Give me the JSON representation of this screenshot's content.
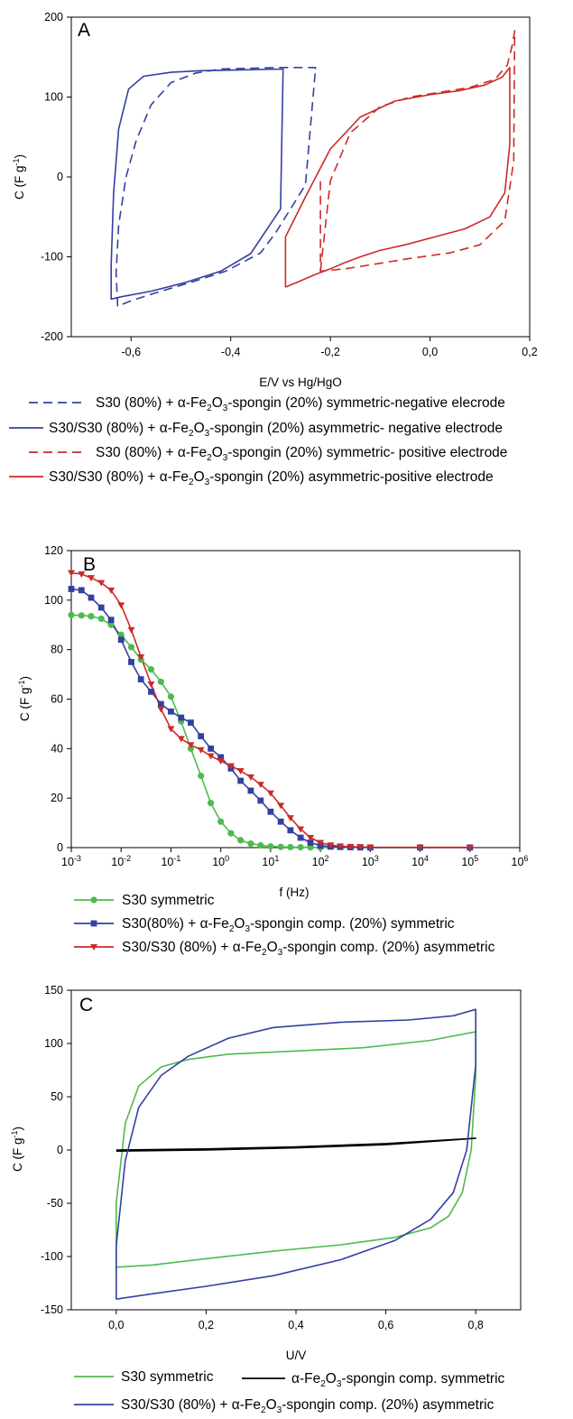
{
  "chart_data": [
    {
      "panel_label": "A",
      "type": "line",
      "xlabel": "E/V vs Hg/HgO",
      "ylabel": "C (F g-1)",
      "xlim": [
        -0.72,
        0.2
      ],
      "ylim": [
        -200,
        200
      ],
      "xticks": [
        "-0,6",
        "-0,4",
        "-0,2",
        "0,0",
        "0,2"
      ],
      "yticks": [
        "-200",
        "-100",
        "0",
        "100",
        "200"
      ],
      "legend_placement": "below",
      "series": [
        {
          "name": "S30 (80%) + α-Fe2O3-spongin (20%) symmetric-negative elecrode",
          "color": "#3340a0",
          "dash": true,
          "x": [
            -0.23,
            -0.23,
            -0.3,
            -0.36,
            -0.42,
            -0.47,
            -0.52,
            -0.56,
            -0.59,
            -0.61,
            -0.625,
            -0.63,
            -0.627,
            -0.62,
            -0.6,
            -0.55,
            -0.48,
            -0.41,
            -0.34,
            -0.31,
            -0.28,
            -0.25,
            -0.23
          ],
          "y": [
            135,
            137,
            137,
            136,
            135,
            130,
            118,
            90,
            45,
            0,
            -60,
            -120,
            -162,
            -160,
            -155,
            -145,
            -132,
            -118,
            -95,
            -70,
            -40,
            -10,
            135
          ]
        },
        {
          "name": "S30/S30 (80%) + α-Fe2O3-spongin (20%) asymmetric- negative electrode",
          "color": "#3340a0",
          "dash": false,
          "x": [
            -0.295,
            -0.295,
            -0.38,
            -0.46,
            -0.52,
            -0.575,
            -0.605,
            -0.625,
            -0.635,
            -0.64,
            -0.64,
            -0.62,
            -0.56,
            -0.49,
            -0.42,
            -0.36,
            -0.3,
            -0.295
          ],
          "y": [
            133,
            135,
            134,
            133,
            131,
            126,
            110,
            60,
            -20,
            -110,
            -153,
            -150,
            -143,
            -132,
            -118,
            -96,
            -40,
            133
          ]
        },
        {
          "name": "S30 (80%) + α-Fe2O3-spongin (20%) symmetric- positive electrode",
          "color": "#cc2a2a",
          "dash": true,
          "x": [
            -0.22,
            -0.2,
            -0.16,
            -0.1,
            -0.04,
            0.02,
            0.08,
            0.13,
            0.155,
            0.165,
            0.17,
            0.168,
            0.15,
            0.1,
            0.04,
            -0.04,
            -0.12,
            -0.17,
            -0.22,
            -0.22
          ],
          "y": [
            -118,
            -5,
            55,
            88,
            100,
            106,
            112,
            122,
            140,
            165,
            183,
            20,
            -55,
            -85,
            -95,
            -102,
            -110,
            -115,
            -118,
            -5
          ]
        },
        {
          "name": "S30/S30 (80%) + α-Fe2O3-spongin (20%) asymmetric-positive electrode",
          "color": "#cc2a2a",
          "dash": false,
          "x": [
            -0.29,
            -0.29,
            -0.25,
            -0.2,
            -0.14,
            -0.07,
            0.0,
            0.06,
            0.11,
            0.145,
            0.16,
            0.16,
            0.15,
            0.12,
            0.07,
            0.01,
            -0.05,
            -0.1,
            -0.14,
            -0.17,
            -0.2,
            -0.23,
            -0.26,
            -0.29
          ],
          "y": [
            -138,
            -75,
            -25,
            35,
            75,
            95,
            103,
            108,
            115,
            125,
            137,
            40,
            -20,
            -50,
            -65,
            -75,
            -85,
            -92,
            -100,
            -107,
            -115,
            -122,
            -130,
            -138
          ]
        }
      ]
    },
    {
      "panel_label": "B",
      "type": "line",
      "xlabel": "f (Hz)",
      "ylabel": "C (F g-1)",
      "xscale": "log",
      "xlim": [
        0.001,
        1000000
      ],
      "ylim": [
        0,
        120
      ],
      "xticks": [
        "10-3",
        "10-2",
        "10-1",
        "100",
        "101",
        "102",
        "103",
        "104",
        "105",
        "106"
      ],
      "yticks": [
        "0",
        "20",
        "40",
        "60",
        "80",
        "100",
        "120"
      ],
      "legend_placement": "below",
      "series": [
        {
          "name": "S30 symmetric",
          "color": "#4dbb4d",
          "marker": "circle",
          "x": [
            0.001,
            0.0016,
            0.0025,
            0.004,
            0.0063,
            0.01,
            0.016,
            0.025,
            0.04,
            0.063,
            0.1,
            0.16,
            0.25,
            0.4,
            0.63,
            1,
            1.6,
            2.5,
            4,
            6.3,
            10,
            16,
            25,
            40,
            63,
            100,
            1000,
            10000,
            100000
          ],
          "y": [
            94,
            93.8,
            93.5,
            92.5,
            90,
            86,
            81,
            76,
            72,
            67,
            61,
            51,
            40,
            29,
            18,
            10.5,
            5.8,
            3,
            1.6,
            0.9,
            0.5,
            0.3,
            0.2,
            0.15,
            0.1,
            0.05,
            0.05,
            0.05,
            0.05
          ]
        },
        {
          "name": "S30(80%) + α-Fe2O3-spongin comp. (20%) symmetric",
          "color": "#3340a0",
          "marker": "square",
          "x": [
            0.001,
            0.0016,
            0.0025,
            0.004,
            0.0063,
            0.01,
            0.016,
            0.025,
            0.04,
            0.063,
            0.1,
            0.16,
            0.25,
            0.4,
            0.63,
            1,
            1.6,
            2.5,
            4,
            6.3,
            10,
            16,
            25,
            40,
            63,
            100,
            160,
            250,
            400,
            630,
            1000,
            10000,
            100000
          ],
          "y": [
            104.5,
            104,
            101,
            97,
            92,
            84,
            75,
            68,
            63,
            58,
            55,
            52.5,
            50.5,
            45,
            40,
            36.5,
            32,
            27,
            23,
            19,
            14.5,
            10.5,
            7,
            4,
            2,
            0.8,
            0.4,
            0.25,
            0.15,
            0.1,
            0.05,
            0.05,
            0.05
          ]
        },
        {
          "name": "S30/S30 (80%) + α-Fe2O3-spongin comp. (20%) asymmetric",
          "color": "#cc2a2a",
          "marker": "triangle-down",
          "x": [
            0.001,
            0.0016,
            0.0025,
            0.004,
            0.0063,
            0.01,
            0.016,
            0.025,
            0.04,
            0.063,
            0.1,
            0.16,
            0.25,
            0.4,
            0.63,
            1,
            1.6,
            2.5,
            4,
            6.3,
            10,
            16,
            25,
            40,
            63,
            100,
            160,
            250,
            400,
            630,
            1000,
            10000,
            100000
          ],
          "y": [
            111,
            110.5,
            109,
            107,
            104,
            98,
            88,
            77,
            66,
            56,
            48,
            44,
            41.5,
            39.5,
            37,
            35,
            33,
            31,
            28.5,
            25.5,
            22,
            17,
            12,
            7.5,
            4,
            2,
            1,
            0.6,
            0.4,
            0.3,
            0.2,
            0.1,
            0.1
          ]
        }
      ]
    },
    {
      "panel_label": "C",
      "type": "line",
      "xlabel": "U/V",
      "ylabel": "C (F g-1)",
      "xlim": [
        -0.1,
        0.9
      ],
      "ylim": [
        -150,
        150
      ],
      "xticks": [
        "0,0",
        "0,2",
        "0,4",
        "0,6",
        "0,8"
      ],
      "yticks": [
        "-150",
        "-100",
        "-50",
        "0",
        "50",
        "100",
        "150"
      ],
      "legend_placement": "below",
      "series": [
        {
          "name": "S30 symmetric",
          "color": "#4dbb4d",
          "x": [
            0.0,
            0.0,
            0.02,
            0.05,
            0.1,
            0.16,
            0.25,
            0.4,
            0.55,
            0.7,
            0.8,
            0.8,
            0.79,
            0.77,
            0.74,
            0.7,
            0.62,
            0.5,
            0.35,
            0.2,
            0.08,
            0.0
          ],
          "y": [
            -110,
            -50,
            25,
            60,
            78,
            85,
            90,
            93,
            96,
            103,
            111,
            70,
            0,
            -40,
            -62,
            -73,
            -82,
            -89,
            -95,
            -102,
            -108,
            -110
          ]
        },
        {
          "name": "α-Fe2O3-spongin comp. symmetric",
          "color": "#000000",
          "x": [
            0.0,
            0.2,
            0.4,
            0.6,
            0.8,
            0.6,
            0.4,
            0.2,
            0.0
          ],
          "y": [
            0,
            1,
            3,
            6,
            11,
            5,
            2,
            0,
            -1
          ]
        },
        {
          "name": "S30/S30 (80%) + α-Fe2O3-spongin comp. (20%) asymmetric",
          "color": "#3340a0",
          "x": [
            0.0,
            0.0,
            0.02,
            0.05,
            0.1,
            0.16,
            0.25,
            0.35,
            0.5,
            0.65,
            0.75,
            0.8,
            0.8,
            0.78,
            0.75,
            0.7,
            0.62,
            0.5,
            0.35,
            0.2,
            0.08,
            0.0
          ],
          "y": [
            -140,
            -90,
            -10,
            40,
            70,
            88,
            105,
            115,
            120,
            122,
            126,
            132,
            80,
            0,
            -40,
            -65,
            -85,
            -103,
            -118,
            -128,
            -135,
            -140
          ]
        }
      ]
    }
  ],
  "legend_symbols": {
    "fe2o3": "α-Fe",
    "sub2": "2",
    "o": "O",
    "sub3": "3",
    "unit_sup": "-1"
  }
}
